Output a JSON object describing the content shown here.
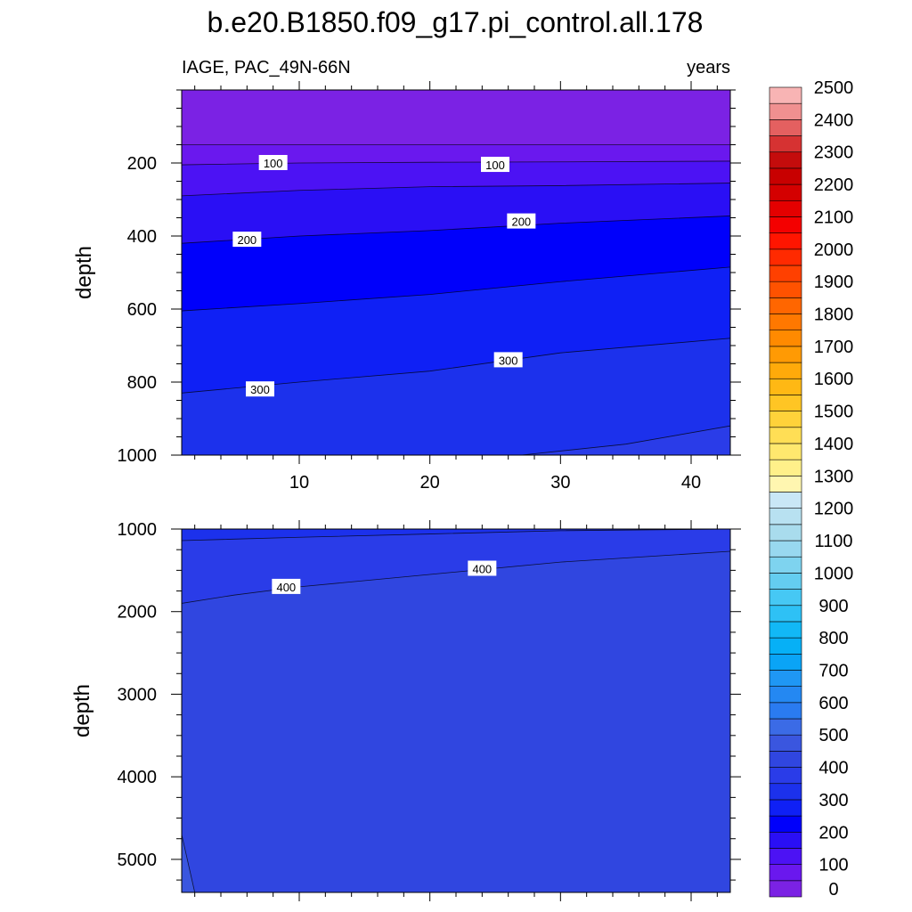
{
  "chart_data": {
    "type": "contour",
    "title": "b.e20.B1850.f09_g17.pi_control.all.178",
    "variable_label": "IAGE, PAC_49N-66N",
    "units_label": "years",
    "xlabel": "",
    "ylabel": "depth",
    "x_range": [
      1,
      43
    ],
    "x_ticks": [
      10,
      20,
      30,
      40
    ],
    "panels": [
      {
        "name": "upper",
        "ylim": [
          0,
          1000
        ],
        "y_ticks": [
          200,
          400,
          600,
          800,
          1000
        ],
        "contours": [
          {
            "level": 50,
            "x": [
              1,
              43
            ],
            "y": [
              150,
              150
            ]
          },
          {
            "level": 100,
            "x": [
              1,
              10,
              20,
              30,
              43
            ],
            "y": [
              205,
              200,
              198,
              197,
              195
            ]
          },
          {
            "level": 150,
            "x": [
              1,
              10,
              20,
              30,
              43
            ],
            "y": [
              290,
              275,
              265,
              262,
              255
            ]
          },
          {
            "level": 200,
            "x": [
              1,
              10,
              20,
              30,
              43
            ],
            "y": [
              420,
              400,
              385,
              365,
              345
            ]
          },
          {
            "level": 250,
            "x": [
              1,
              10,
              20,
              30,
              43
            ],
            "y": [
              605,
              585,
              560,
              525,
              485
            ]
          },
          {
            "level": 300,
            "x": [
              1,
              10,
              20,
              30,
              43
            ],
            "y": [
              830,
              800,
              770,
              720,
              680
            ]
          },
          {
            "level": 350,
            "x": [
              27,
              35,
              43
            ],
            "y": [
              1000,
              970,
              920
            ]
          }
        ],
        "labels": [
          {
            "text": "100",
            "x": 8,
            "y": 200
          },
          {
            "text": "100",
            "x": 25,
            "y": 205
          },
          {
            "text": "200",
            "x": 6,
            "y": 410
          },
          {
            "text": "200",
            "x": 27,
            "y": 360
          },
          {
            "text": "300",
            "x": 7,
            "y": 820
          },
          {
            "text": "300",
            "x": 26,
            "y": 740
          }
        ]
      },
      {
        "name": "lower",
        "ylim": [
          1000,
          5400
        ],
        "y_ticks": [
          1000,
          2000,
          3000,
          4000,
          5000
        ],
        "contours": [
          {
            "level": 350,
            "x": [
              1,
              10,
              20,
              30,
              43
            ],
            "y": [
              1140,
              1100,
              1060,
              1020,
              1000
            ]
          },
          {
            "level": 400,
            "x": [
              1,
              5,
              10,
              20,
              30,
              43
            ],
            "y": [
              1900,
              1800,
              1700,
              1550,
              1400,
              1270
            ]
          },
          {
            "level": 450,
            "x": [
              1,
              2
            ],
            "y": [
              4700,
              5400
            ]
          }
        ],
        "labels": [
          {
            "text": "400",
            "x": 9,
            "y": 1700
          },
          {
            "text": "400",
            "x": 24,
            "y": 1480
          }
        ]
      }
    ],
    "colorbar": {
      "levels": [
        0,
        50,
        100,
        150,
        200,
        250,
        300,
        350,
        400,
        450,
        500,
        550,
        600,
        650,
        700,
        750,
        800,
        850,
        900,
        950,
        1000,
        1050,
        1100,
        1150,
        1200,
        1250,
        1300,
        1350,
        1400,
        1450,
        1500,
        1550,
        1600,
        1650,
        1700,
        1750,
        1800,
        1850,
        1900,
        1950,
        2000,
        2050,
        2100,
        2150,
        2200,
        2250,
        2300,
        2350,
        2400,
        2450,
        2500
      ],
      "labels": [
        "0",
        "100",
        "200",
        "300",
        "400",
        "500",
        "600",
        "700",
        "800",
        "900",
        "1000",
        "1100",
        "1200",
        "1300",
        "1400",
        "1500",
        "1600",
        "1700",
        "1800",
        "1900",
        "2000",
        "2100",
        "2200",
        "2300",
        "2400",
        "2500"
      ],
      "colors": [
        "#7b22e4",
        "#6a18ee",
        "#4c12f4",
        "#2a0ff5",
        "#0000fb",
        "#0f20f5",
        "#1c31ec",
        "#2a3ce8",
        "#3046e0",
        "#3a56df",
        "#3b6be6",
        "#2a7bf0",
        "#2488f2",
        "#1f97f4",
        "#0aa4f6",
        "#06b0f6",
        "#12b8f6",
        "#2ec1f5",
        "#46c8f4",
        "#64cdf0",
        "#7ed3ef",
        "#98d8ef",
        "#a9dced",
        "#b8e1f1",
        "#c9e7f6",
        "#fff6b0",
        "#fff08a",
        "#ffe86e",
        "#ffde55",
        "#ffd23a",
        "#ffc524",
        "#ffb814",
        "#ffaa0a",
        "#ff9a04",
        "#ff8a00",
        "#ff7800",
        "#ff6600",
        "#ff5200",
        "#ff4000",
        "#ff2a00",
        "#ff1500",
        "#f40000",
        "#e40000",
        "#d40000",
        "#c80000",
        "#c40c0c",
        "#d63232",
        "#e46060",
        "#f09090",
        "#f8b4b4"
      ]
    }
  }
}
